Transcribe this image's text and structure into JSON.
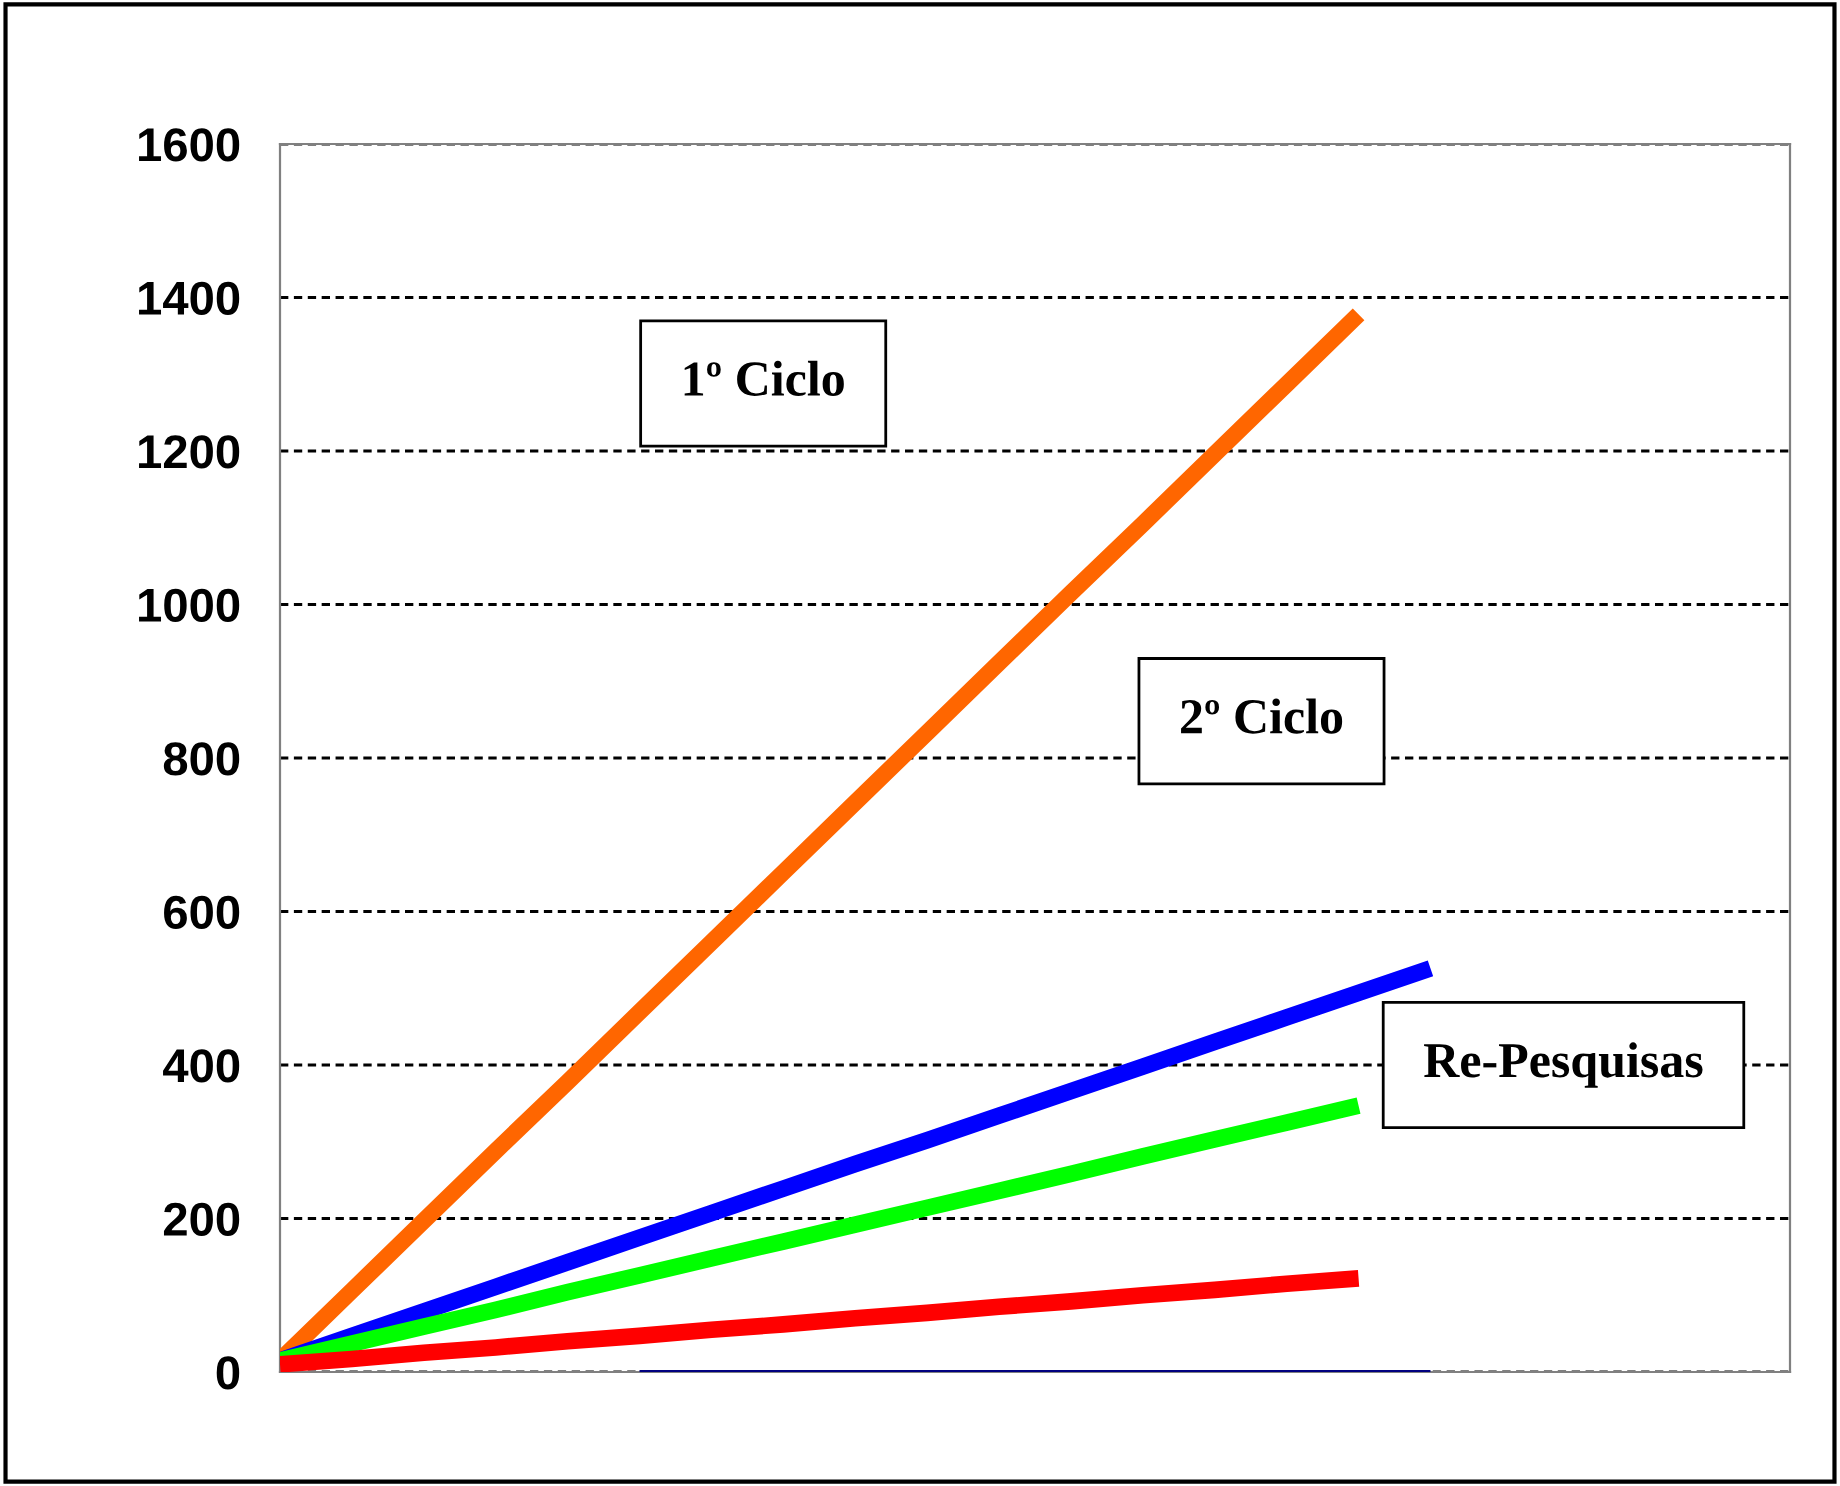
{
  "chart_data": {
    "type": "line",
    "annotations": [
      "1º Ciclo",
      "2º Ciclo",
      "Re-Pesquisas"
    ],
    "categories": [
      null,
      null,
      null,
      null,
      null,
      null,
      null,
      null,
      null,
      null,
      null,
      null,
      null,
      null,
      null,
      null,
      null,
      null,
      null,
      null,
      null,
      null
    ],
    "series": [
      {
        "color": "#ff6600",
        "values": [
          15,
          106,
          197,
          288,
          378,
          469,
          560,
          651,
          742,
          833,
          924,
          1015,
          1105,
          1196,
          1287,
          1378,
          null,
          null,
          null,
          null,
          null,
          null
        ]
      },
      {
        "color": "#0000ff",
        "values": [
          15,
          47,
          79,
          111,
          143,
          175,
          207,
          239,
          271,
          302,
          334,
          366,
          398,
          430,
          462,
          494,
          526,
          null,
          null,
          null,
          null,
          null
        ]
      },
      {
        "color": "#00ff00",
        "values": [
          15,
          37,
          59,
          81,
          104,
          126,
          148,
          170,
          192,
          214,
          236,
          258,
          281,
          303,
          325,
          347,
          null,
          null,
          null,
          null,
          null,
          null
        ]
      },
      {
        "color": "#ff0000",
        "values": [
          10,
          17,
          25,
          32,
          40,
          47,
          55,
          62,
          70,
          77,
          85,
          92,
          100,
          107,
          115,
          122,
          null,
          null,
          null,
          null,
          null,
          null
        ]
      },
      {
        "color": "#000080",
        "values": [
          null,
          null,
          null,
          null,
          null,
          0,
          0,
          0,
          0,
          0,
          0,
          0,
          0,
          0,
          0,
          0,
          0,
          null,
          null,
          null,
          null,
          null
        ]
      }
    ],
    "ylim": [
      0,
      1600
    ],
    "yticks": [
      0,
      200,
      400,
      600,
      800,
      1000,
      1200,
      1400,
      1600
    ],
    "grid": "y",
    "tick_labels": "y",
    "marker": "none",
    "line_style": "solid"
  }
}
